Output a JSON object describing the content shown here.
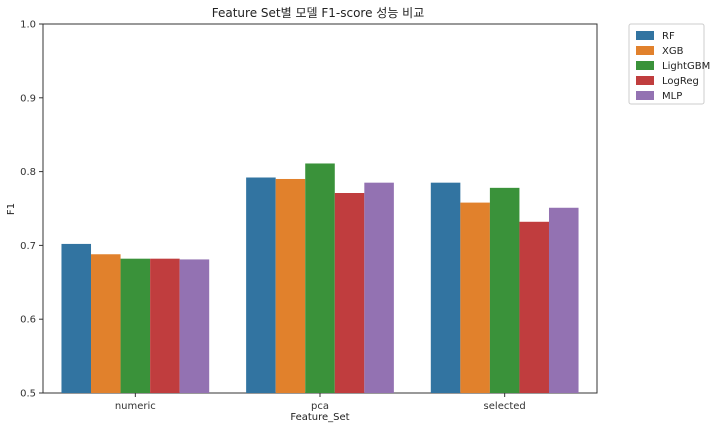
{
  "chart_data": {
    "type": "bar",
    "title": "Feature Set별 모델 F1-score 성능 비교",
    "xlabel": "Feature_Set",
    "ylabel": "F1",
    "categories": [
      "numeric",
      "pca",
      "selected"
    ],
    "ylim": [
      0.5,
      1.0
    ],
    "yticks": [
      "0.5",
      "0.6",
      "0.7",
      "0.8",
      "0.9",
      "1.0"
    ],
    "legend_position": "outside-top-right",
    "grid": false,
    "series": [
      {
        "name": "RF",
        "color": "#3274a1",
        "values": [
          0.702,
          0.792,
          0.785
        ]
      },
      {
        "name": "XGB",
        "color": "#e1812c",
        "values": [
          0.688,
          0.79,
          0.758
        ]
      },
      {
        "name": "LightGBM",
        "color": "#3a923a",
        "values": [
          0.682,
          0.811,
          0.778
        ]
      },
      {
        "name": "LogReg",
        "color": "#c03d3e",
        "values": [
          0.682,
          0.771,
          0.732
        ]
      },
      {
        "name": "MLP",
        "color": "#9372b2",
        "values": [
          0.681,
          0.785,
          0.751
        ]
      }
    ]
  }
}
